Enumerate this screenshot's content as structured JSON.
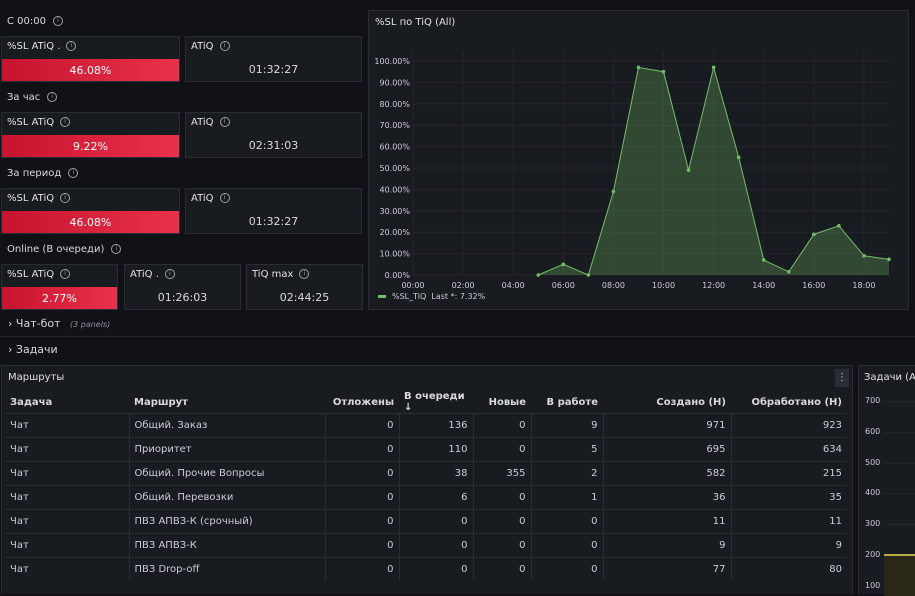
{
  "sections": {
    "s1": "С 00:00",
    "s2": "За час",
    "s3": "За период",
    "s4": "Online (В очереди)"
  },
  "stats": {
    "r1": {
      "sl_title": "%SL ATiQ .",
      "sl_value": "46.08%",
      "atiq_title": "ATiQ",
      "atiq_value": "01:32:27"
    },
    "r2": {
      "sl_title": "%SL ATiQ",
      "sl_value": "9.22%",
      "atiq_title": "ATiQ",
      "atiq_value": "02:31:03"
    },
    "r3": {
      "sl_title": "%SL ATiQ",
      "sl_value": "46.08%",
      "atiq_title": "ATiQ",
      "atiq_value": "01:32:27"
    },
    "r4": {
      "sl_title": "%SL ATiQ",
      "sl_value": "2.77%",
      "atiq_title": "ATiQ .",
      "atiq_value": "01:26:03",
      "max_title": "TiQ max",
      "max_value": "02:44:25"
    }
  },
  "chart_panel": {
    "title": "%SL по TiQ (All)",
    "legend_name": "%SL_TiQ",
    "legend_last": "Last *: 7.32%"
  },
  "chart_data": {
    "type": "area",
    "x": [
      "00:00",
      "01:00",
      "02:00",
      "03:00",
      "04:00",
      "05:00",
      "06:00",
      "07:00",
      "08:00",
      "09:00",
      "10:00",
      "11:00",
      "12:00",
      "13:00",
      "14:00",
      "15:00",
      "16:00",
      "17:00",
      "18:00",
      "19:00"
    ],
    "values": [
      null,
      null,
      null,
      null,
      null,
      0,
      5,
      0,
      39,
      97,
      95,
      49,
      97,
      55,
      7,
      1.5,
      19,
      23,
      9,
      7.32
    ],
    "xticks": [
      "00:00",
      "02:00",
      "04:00",
      "06:00",
      "08:00",
      "10:00",
      "12:00",
      "14:00",
      "16:00",
      "18:00"
    ],
    "yticks": [
      "0.00%",
      "10.00%",
      "20.00%",
      "30.00%",
      "40.00%",
      "50.00%",
      "60.00%",
      "70.00%",
      "80.00%",
      "90.00%",
      "100.00%"
    ],
    "ylim": [
      0,
      100
    ],
    "series_color": "#73bf69"
  },
  "rows": {
    "chatbot": {
      "label": "Чат-бот",
      "count": "(3 panels)"
    },
    "tasks": {
      "label": "Задачи"
    }
  },
  "table_panel": {
    "title": "Маршруты",
    "menu_icon": "kebab-menu-icon",
    "columns": [
      "Задача",
      "Маршрут",
      "Отложены",
      "В очереди",
      "Новые",
      "В работе",
      "Создано (Н)",
      "Обработано (Н)"
    ],
    "sort_arrow": "↓",
    "rows": [
      [
        "Чат",
        "Общий. Заказ",
        "0",
        "136",
        "0",
        "9",
        "971",
        "923"
      ],
      [
        "Чат",
        "Приоритет",
        "0",
        "110",
        "0",
        "5",
        "695",
        "634"
      ],
      [
        "Чат",
        "Общий. Прочие Вопросы",
        "0",
        "38",
        "355",
        "2",
        "582",
        "215"
      ],
      [
        "Чат",
        "Общий. Перевозки",
        "0",
        "6",
        "0",
        "1",
        "36",
        "35"
      ],
      [
        "Чат",
        "ПВЗ АПВЗ-К (срочный)",
        "0",
        "0",
        "0",
        "0",
        "11",
        "11"
      ],
      [
        "Чат",
        "ПВЗ АПВЗ-К",
        "0",
        "0",
        "0",
        "0",
        "9",
        "9"
      ],
      [
        "Чат",
        "ПВЗ Drop-off",
        "0",
        "0",
        "0",
        "0",
        "77",
        "80"
      ]
    ]
  },
  "side_panel": {
    "title": "Задачи (All)",
    "yticks": [
      "700",
      "600",
      "500",
      "400",
      "300",
      "200",
      "100"
    ]
  }
}
